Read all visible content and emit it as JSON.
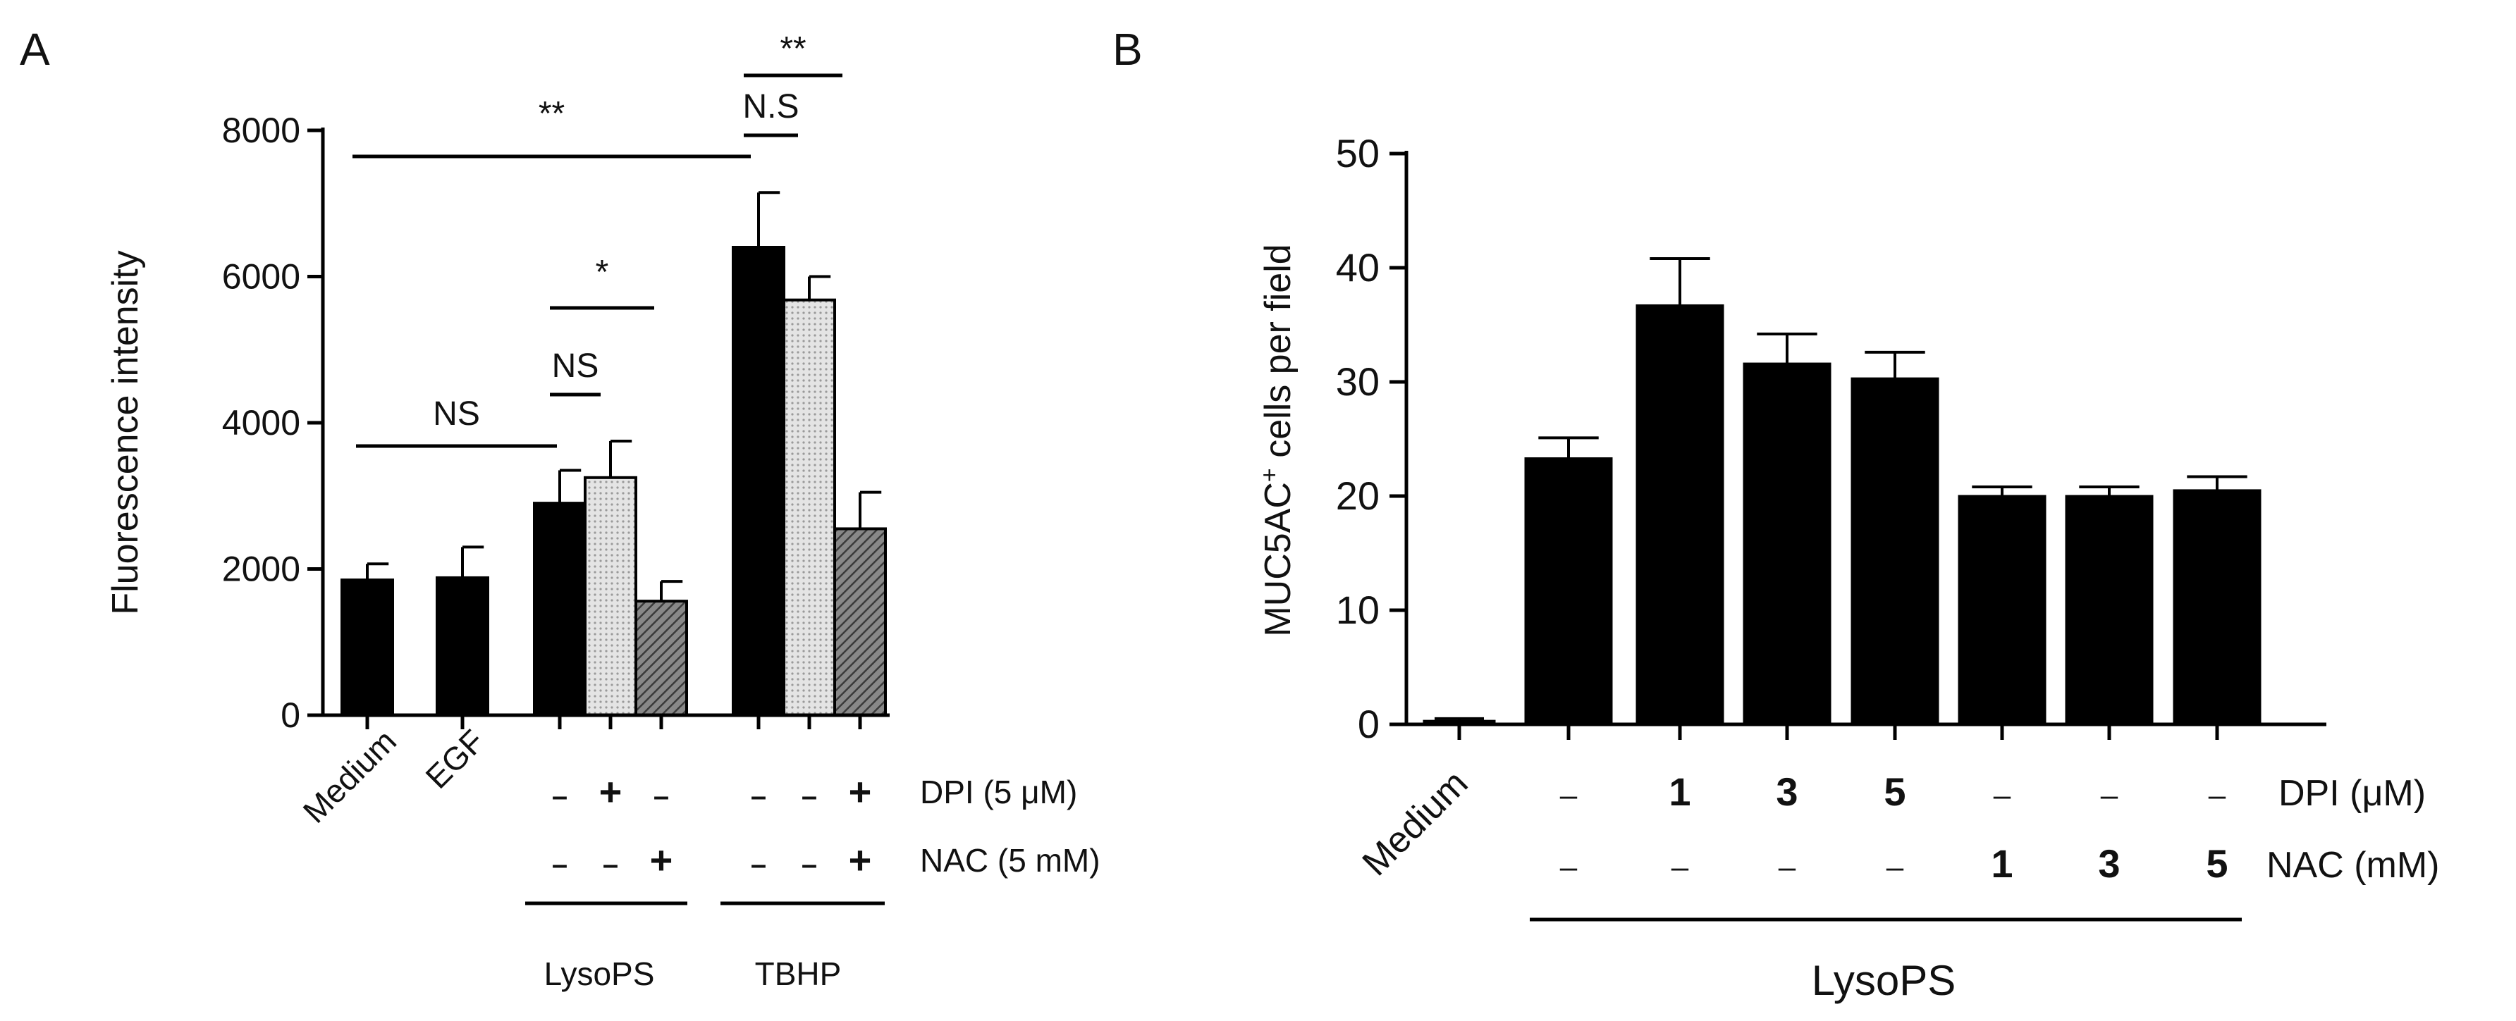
{
  "chart_data": [
    {
      "panel": "A",
      "type": "bar",
      "ylabel": "Fluorescence intensity",
      "ylim": [
        0,
        8000
      ],
      "yticks": [
        0,
        2000,
        4000,
        6000,
        8000
      ],
      "groups": [
        {
          "label": "Medium",
          "bars": [
            {
              "value": 1850,
              "error": 220,
              "fill": "black"
            }
          ]
        },
        {
          "label": "EGF",
          "bars": [
            {
              "value": 1880,
              "error": 420,
              "fill": "black"
            }
          ]
        },
        {
          "label": "LysoPS",
          "bars": [
            {
              "value": 2900,
              "error": 450,
              "fill": "black",
              "dpi": "–",
              "nac": "–"
            },
            {
              "value": 3250,
              "error": 500,
              "fill": "light",
              "dpi": "+",
              "nac": "–"
            },
            {
              "value": 1560,
              "error": 270,
              "fill": "hatched",
              "dpi": "–",
              "nac": "+"
            }
          ]
        },
        {
          "label": "TBHP",
          "bars": [
            {
              "value": 6400,
              "error": 750,
              "fill": "black",
              "dpi": "–",
              "nac": "–"
            },
            {
              "value": 5680,
              "error": 320,
              "fill": "light",
              "dpi": "–",
              "nac": "–"
            },
            {
              "value": 2550,
              "error": 500,
              "fill": "hatched",
              "dpi": "+",
              "nac": "+"
            }
          ]
        }
      ],
      "treatment_rows": [
        "DPI (5 μM)",
        "NAC (5 mM)"
      ],
      "significance": [
        {
          "from": [
            0,
            0
          ],
          "to": [
            2,
            0
          ],
          "label": "NS"
        },
        {
          "from": [
            2,
            0
          ],
          "to": [
            2,
            1
          ],
          "label": "NS"
        },
        {
          "from": [
            2,
            0
          ],
          "to": [
            2,
            2
          ],
          "label": "*"
        },
        {
          "from": [
            0,
            0
          ],
          "to": [
            3,
            0
          ],
          "label": "**"
        },
        {
          "from": [
            3,
            0
          ],
          "to": [
            3,
            1
          ],
          "label": "N.S"
        },
        {
          "from": [
            3,
            0
          ],
          "to": [
            3,
            2
          ],
          "label": "**"
        }
      ]
    },
    {
      "panel": "B",
      "type": "bar",
      "ylabel_main": "MUC5AC",
      "ylabel_sup": "+",
      "ylabel_rest": " cells per field",
      "ylim": [
        0,
        50
      ],
      "yticks": [
        0,
        10,
        20,
        30,
        40,
        50
      ],
      "categories": [
        "Medium",
        "",
        "",
        "",
        "",
        "",
        "",
        ""
      ],
      "values": [
        0.3,
        23.3,
        36.7,
        31.6,
        30.3,
        20.0,
        20.0,
        20.5
      ],
      "errors": [
        0.2,
        1.8,
        4.1,
        2.6,
        2.3,
        0.8,
        0.8,
        1.2
      ],
      "dpi": [
        "",
        "–",
        "1",
        "3",
        "5",
        "–",
        "–",
        "–"
      ],
      "nac": [
        "",
        "–",
        "–",
        "–",
        "–",
        "1",
        "3",
        "5"
      ],
      "treatment_rows": [
        "DPI (μM)",
        "NAC (mM)"
      ],
      "group_label": "LysoPS"
    }
  ],
  "panelA": {
    "panel_letter": "A",
    "ylabel": "Fluorescence intensity",
    "xlabels": [
      "Medium",
      "EGF"
    ],
    "row_labels": [
      "DPI (5 μM)",
      "NAC (5 mM)"
    ],
    "group_labels": [
      "LysoPS",
      "TBHP"
    ]
  },
  "panelB": {
    "panel_letter": "B",
    "ylabel_main": "MUC5AC",
    "ylabel_sup": "+",
    "ylabel_rest": " cells per field",
    "xlabels": [
      "Medium"
    ],
    "row_labels": [
      "DPI (μM)",
      "NAC (mM)"
    ],
    "group_label": "LysoPS"
  }
}
